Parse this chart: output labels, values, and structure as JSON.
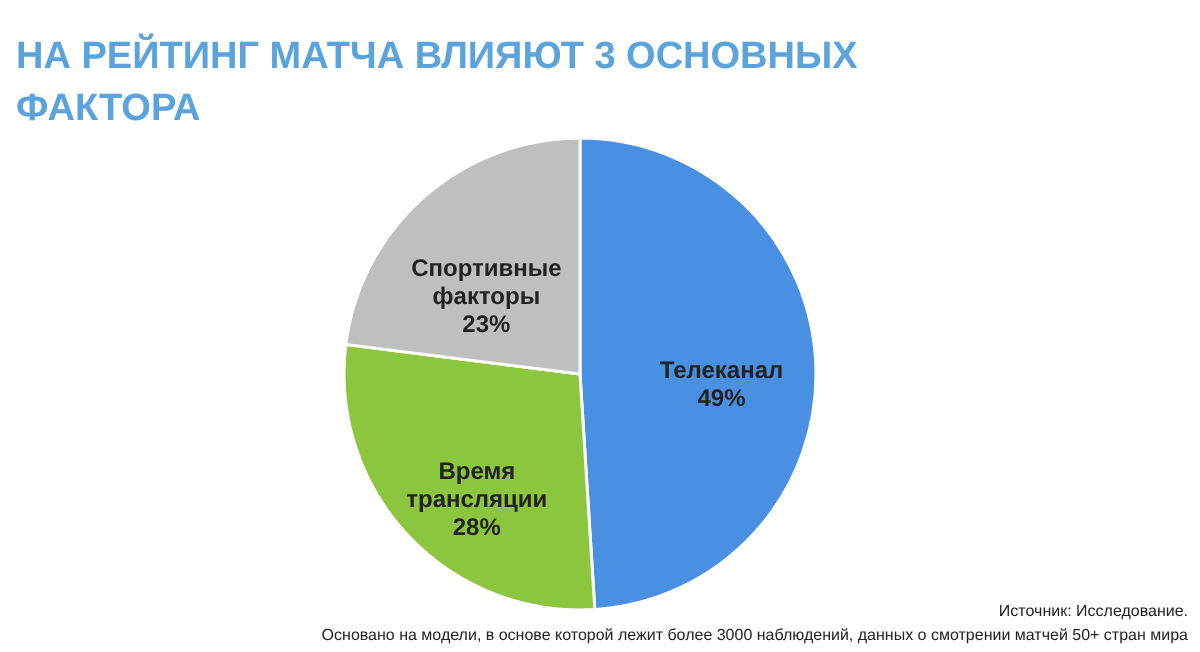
{
  "chart_data": {
    "type": "pie",
    "title": "НА РЕЙТИНГ МАТЧА ВЛИЯЮТ 3 ОСНОВНЫХ ФАКТОРА",
    "categories": [
      "Телеканал",
      "Время трансляции",
      "Спортивные факторы"
    ],
    "values": [
      49,
      28,
      23
    ],
    "colors": [
      "#4a90e2",
      "#8cc63e",
      "#bfbfbf"
    ],
    "value_labels": [
      "49%",
      "28%",
      "23%"
    ],
    "annotations": [
      "Источник: Исследование.",
      "Основано на модели, в основе которой лежит более 3000 наблюдений, данных о смотрении матчей 50+ стран мира"
    ]
  }
}
